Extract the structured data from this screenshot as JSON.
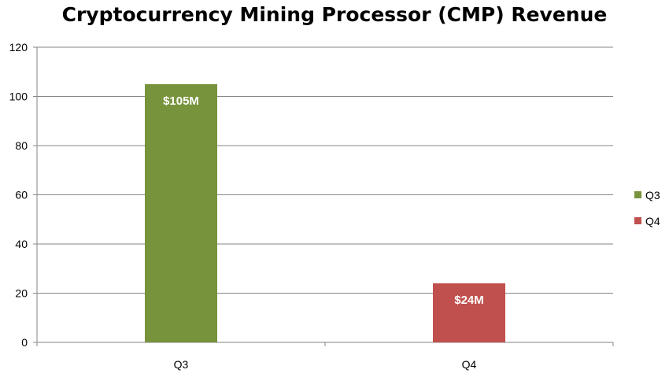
{
  "chart_data": {
    "type": "bar",
    "title": "Cryptocurrency Mining Processor (CMP) Revenue",
    "categories": [
      "Q3",
      "Q4"
    ],
    "series": [
      {
        "name": "Q3",
        "values": [
          105,
          null
        ],
        "color": "#77933c",
        "label": "$105M"
      },
      {
        "name": "Q4",
        "values": [
          null,
          24
        ],
        "color": "#c0504d",
        "label": "$24M"
      }
    ],
    "ylim": [
      0,
      120
    ],
    "yticks": [
      0,
      20,
      40,
      60,
      80,
      100,
      120
    ],
    "grid": true,
    "legend_position": "right"
  }
}
